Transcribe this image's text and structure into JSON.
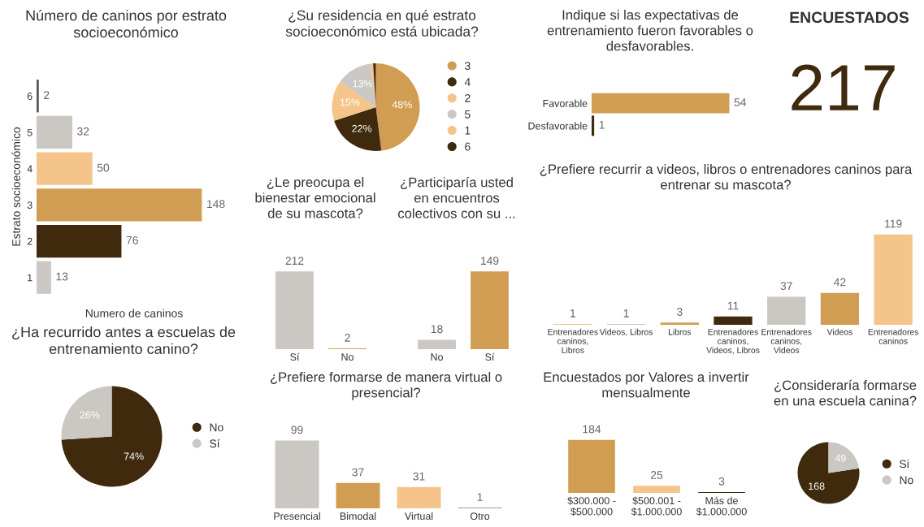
{
  "chart_data": [
    {
      "type": "bar",
      "orientation": "horizontal",
      "title": "Número de caninos por estrato\nsocioeconómico",
      "ylabel": "Estrato socioeconómico",
      "xlabel": "Numero de caninos",
      "categories": [
        "6",
        "5",
        "4",
        "3",
        "2",
        "1"
      ],
      "values": [
        2,
        32,
        50,
        148,
        76,
        13
      ],
      "colors": [
        "#555555",
        "#cbc8c3",
        "#f4c48a",
        "#d19d52",
        "#3f2a0e",
        "#cbc8c3"
      ],
      "data_labels": true,
      "tick_labels": "y",
      "grid": false,
      "legend": false
    },
    {
      "type": "pie",
      "title": "¿Su residencia en qué estrato\nsocioeconómico está ubicada?",
      "categories": [
        "3",
        "4",
        "2",
        "5",
        "1",
        "6"
      ],
      "values": [
        48,
        22,
        15,
        13,
        1,
        1
      ],
      "colors": [
        "#d19d52",
        "#3f2a0e",
        "#f4c48a",
        "#cbc8c3",
        "#f4c48a",
        "#3f2a0e"
      ],
      "value_labels": [
        "48%",
        "22%",
        "15%",
        "13%",
        null,
        null
      ],
      "legend": "right"
    },
    {
      "type": "bar",
      "orientation": "horizontal",
      "title": "Indique si las expectativas de\nentrenamiento fueron favorables o\ndesfavorables.",
      "categories": [
        "Favorable",
        "Desfavorable"
      ],
      "values": [
        54,
        1
      ],
      "colors": [
        "#d19d52",
        "#3f2a0e"
      ],
      "data_labels": true,
      "tick_labels": "y",
      "grid": false,
      "legend": false
    },
    {
      "type": "other",
      "title": "ENCUESTADOS",
      "annotations": [
        "217"
      ]
    },
    {
      "type": "bar",
      "title": "¿Le preocupa el\nbienestar emocional\nde su mascota?",
      "categories": [
        "Sí",
        "No"
      ],
      "values": [
        212,
        2
      ],
      "colors": [
        "#cbc8c3",
        "#d19d52"
      ],
      "data_labels": true,
      "tick_labels": "x",
      "grid": false,
      "legend": false
    },
    {
      "type": "bar",
      "title": "¿Participaría usted\nen encuentros\ncolectivos con su ...",
      "categories": [
        "No",
        "Sí"
      ],
      "values": [
        18,
        149
      ],
      "colors": [
        "#cbc8c3",
        "#d19d52"
      ],
      "data_labels": true,
      "tick_labels": "x",
      "grid": false,
      "legend": false
    },
    {
      "type": "bar",
      "title": "¿Prefiere recurrir a videos, libros o entrenadores caninos para\nentrenar su mascota?",
      "categories": [
        "Entrenadores\ncaninos,\nLibros",
        "Videos, Libros",
        "Libros",
        "Entrenadores\ncaninos,\nVideos, Libros",
        "Entrenadores\ncaninos,\nVideos",
        "Videos",
        "Entrenadores\ncaninos"
      ],
      "values": [
        1,
        1,
        3,
        11,
        37,
        42,
        119
      ],
      "colors": [
        "#f4c48a",
        "#cbc8c3",
        "#d19d52",
        "#3f2a0e",
        "#cbc8c3",
        "#d19d52",
        "#f4c48a"
      ],
      "data_labels": true,
      "tick_labels": "x",
      "grid": false,
      "legend": false
    },
    {
      "type": "pie",
      "title": "¿Ha recurrido antes a escuelas de\nentrenamiento canino?",
      "categories": [
        "No",
        "Sí"
      ],
      "values": [
        74,
        26
      ],
      "colors": [
        "#3f2a0e",
        "#cbc8c3"
      ],
      "value_labels": [
        "74%",
        "26%"
      ],
      "legend": "right"
    },
    {
      "type": "bar",
      "title": "¿Prefiere formarse de manera virtual o\npresencial?",
      "categories": [
        "Presencial",
        "Bimodal",
        "Virtual",
        "Otro"
      ],
      "values": [
        99,
        37,
        31,
        1
      ],
      "colors": [
        "#cbc8c3",
        "#d19d52",
        "#f4c48a",
        "#8c7b6b"
      ],
      "data_labels": true,
      "tick_labels": "x",
      "grid": false,
      "legend": false
    },
    {
      "type": "bar",
      "title": "Encuestados por Valores a invertir\nmensualmente",
      "categories": [
        "$300.000 -\n$500.000",
        "$500.001 -\n$1.000.000",
        "Más de\n$1.000.000"
      ],
      "values": [
        184,
        25,
        3
      ],
      "colors": [
        "#d19d52",
        "#f4c48a",
        "#3f2a0e"
      ],
      "data_labels": true,
      "tick_labels": "x",
      "grid": false,
      "legend": false
    },
    {
      "type": "pie",
      "title": "¿Consideraría formarse\nen una escuela canina?",
      "categories": [
        "Si",
        "No"
      ],
      "values": [
        168,
        49
      ],
      "colors": [
        "#3f2a0e",
        "#cbc8c3"
      ],
      "data_labels": true,
      "legend": "right"
    }
  ]
}
